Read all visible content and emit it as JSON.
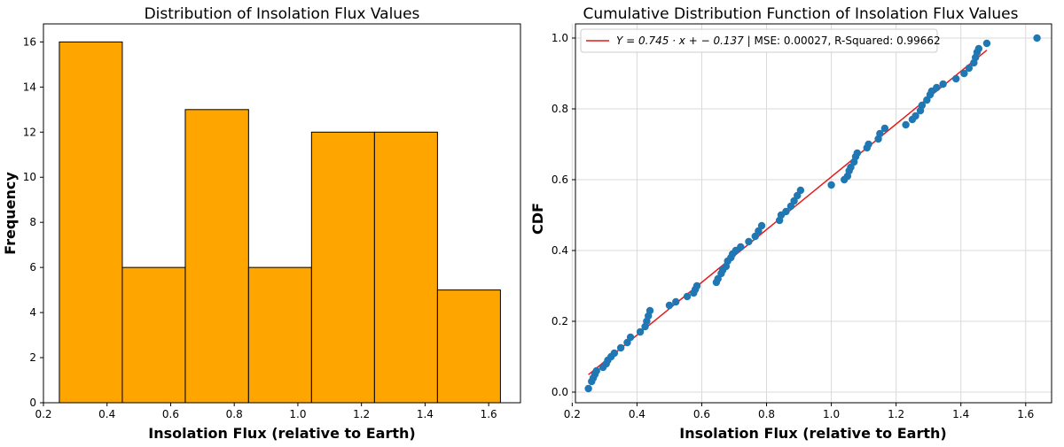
{
  "chart_data": [
    {
      "type": "bar",
      "title": "Distribution of Insolation Flux Values",
      "xlabel": "Insolation Flux (relative to Earth)",
      "ylabel": "Frequency",
      "bin_edges": [
        0.25,
        0.448,
        0.646,
        0.845,
        1.043,
        1.241,
        1.439,
        1.637
      ],
      "values": [
        16,
        6,
        13,
        6,
        12,
        12,
        5
      ],
      "xlim": [
        0.2,
        1.7
      ],
      "ylim": [
        0,
        16.8
      ],
      "xticks": [
        0.2,
        0.4,
        0.6,
        0.8,
        1.0,
        1.2,
        1.4,
        1.6
      ],
      "xtick_labels": [
        "0.2",
        "0.4",
        "0.6",
        "0.8",
        "1.0",
        "1.2",
        "1.4",
        "1.6"
      ],
      "yticks": [
        0,
        2,
        4,
        6,
        8,
        10,
        12,
        14,
        16
      ],
      "ytick_labels": [
        "0",
        "2",
        "4",
        "6",
        "8",
        "10",
        "12",
        "14",
        "16"
      ],
      "colors": {
        "bar_fill": "#FFA500",
        "bar_edge": "#000000"
      },
      "grid": false
    },
    {
      "type": "scatter",
      "title": "Cumulative Distribution Function of Insolation Flux Values",
      "xlabel": "Insolation Flux (relative to Earth)",
      "ylabel": "CDF",
      "xlim": [
        0.21,
        1.68
      ],
      "ylim": [
        -0.03,
        1.04
      ],
      "xticks": [
        0.2,
        0.4,
        0.6,
        0.8,
        1.0,
        1.2,
        1.4,
        1.6
      ],
      "xtick_labels": [
        "0.2",
        "0.4",
        "0.6",
        "0.8",
        "1.0",
        "1.2",
        "1.4",
        "1.6"
      ],
      "yticks": [
        0.0,
        0.2,
        0.4,
        0.6,
        0.8,
        1.0
      ],
      "ytick_labels": [
        "0.0",
        "0.2",
        "0.4",
        "0.6",
        "0.8",
        "1.0"
      ],
      "grid": true,
      "legend_position": "top-left",
      "series": [
        {
          "kind": "scatter",
          "color": "#1f77b4",
          "points": [
            [
              0.25,
              0.01
            ],
            [
              0.26,
              0.03
            ],
            [
              0.265,
              0.04
            ],
            [
              0.27,
              0.05
            ],
            [
              0.275,
              0.06
            ],
            [
              0.295,
              0.07
            ],
            [
              0.305,
              0.08
            ],
            [
              0.31,
              0.09
            ],
            [
              0.32,
              0.1
            ],
            [
              0.33,
              0.11
            ],
            [
              0.35,
              0.125
            ],
            [
              0.37,
              0.14
            ],
            [
              0.38,
              0.155
            ],
            [
              0.41,
              0.17
            ],
            [
              0.425,
              0.185
            ],
            [
              0.43,
              0.2
            ],
            [
              0.435,
              0.215
            ],
            [
              0.44,
              0.23
            ],
            [
              0.5,
              0.245
            ],
            [
              0.52,
              0.255
            ],
            [
              0.555,
              0.27
            ],
            [
              0.575,
              0.28
            ],
            [
              0.58,
              0.29
            ],
            [
              0.585,
              0.3
            ],
            [
              0.645,
              0.31
            ],
            [
              0.65,
              0.32
            ],
            [
              0.66,
              0.335
            ],
            [
              0.665,
              0.345
            ],
            [
              0.675,
              0.355
            ],
            [
              0.68,
              0.37
            ],
            [
              0.69,
              0.38
            ],
            [
              0.695,
              0.39
            ],
            [
              0.705,
              0.4
            ],
            [
              0.72,
              0.41
            ],
            [
              0.745,
              0.425
            ],
            [
              0.765,
              0.44
            ],
            [
              0.775,
              0.455
            ],
            [
              0.785,
              0.47
            ],
            [
              0.84,
              0.485
            ],
            [
              0.845,
              0.5
            ],
            [
              0.86,
              0.51
            ],
            [
              0.875,
              0.525
            ],
            [
              0.885,
              0.54
            ],
            [
              0.895,
              0.555
            ],
            [
              0.905,
              0.57
            ],
            [
              1.0,
              0.585
            ],
            [
              1.04,
              0.6
            ],
            [
              1.05,
              0.61
            ],
            [
              1.055,
              0.625
            ],
            [
              1.06,
              0.635
            ],
            [
              1.07,
              0.65
            ],
            [
              1.075,
              0.665
            ],
            [
              1.08,
              0.675
            ],
            [
              1.11,
              0.69
            ],
            [
              1.115,
              0.7
            ],
            [
              1.145,
              0.715
            ],
            [
              1.15,
              0.73
            ],
            [
              1.165,
              0.745
            ],
            [
              1.23,
              0.755
            ],
            [
              1.25,
              0.77
            ],
            [
              1.26,
              0.78
            ],
            [
              1.275,
              0.795
            ],
            [
              1.28,
              0.81
            ],
            [
              1.295,
              0.825
            ],
            [
              1.305,
              0.84
            ],
            [
              1.31,
              0.85
            ],
            [
              1.325,
              0.86
            ],
            [
              1.345,
              0.87
            ],
            [
              1.385,
              0.885
            ],
            [
              1.41,
              0.9
            ],
            [
              1.425,
              0.915
            ],
            [
              1.44,
              0.93
            ],
            [
              1.445,
              0.945
            ],
            [
              1.45,
              0.96
            ],
            [
              1.455,
              0.97
            ],
            [
              1.48,
              0.985
            ],
            [
              1.635,
              1.0
            ]
          ]
        },
        {
          "kind": "line",
          "color": "#e41a1c",
          "x": [
            0.25,
            1.48
          ],
          "y": [
            0.0493,
            0.9657
          ]
        }
      ],
      "legend_items": [
        {
          "color": "#e41a1c",
          "math_label": "Y = 0.745 · x + − 0.137",
          "label_suffix": " | MSE: 0.00027, R-Squared: 0.99662"
        }
      ]
    }
  ]
}
